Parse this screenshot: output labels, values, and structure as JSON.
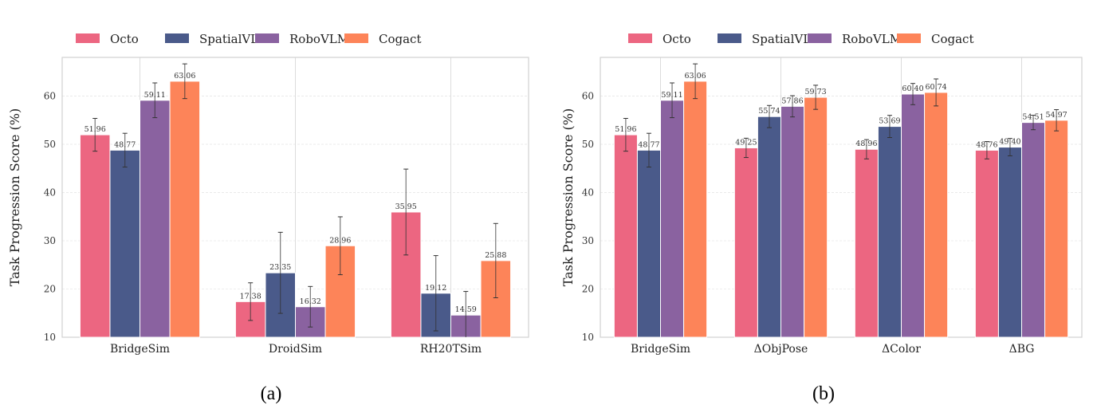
{
  "colors": {
    "Octo": "#ec6681",
    "SpatialVLA": "#4a5a8a",
    "RoboVLM": "#8a62a0",
    "Cogact": "#fd8459"
  },
  "chart_data": [
    {
      "type": "bar",
      "caption": "(a)",
      "ylabel": "Task Progression Score (%)",
      "xlabel": "",
      "ylim": [
        10,
        68
      ],
      "yticks": [
        10,
        20,
        30,
        40,
        50,
        60
      ],
      "grid": true,
      "legend": "top-center",
      "categories": [
        "BridgeSim",
        "DroidSim",
        "RH20TSim"
      ],
      "series": [
        {
          "name": "Octo",
          "values": [
            51.96,
            17.38,
            35.95
          ],
          "errors": [
            3.4,
            3.9,
            8.9
          ]
        },
        {
          "name": "SpatialVLA",
          "values": [
            48.77,
            23.35,
            19.12
          ],
          "errors": [
            3.5,
            8.4,
            7.8
          ]
        },
        {
          "name": "RoboVLM",
          "values": [
            59.11,
            16.32,
            14.59
          ],
          "errors": [
            3.6,
            4.2,
            4.9
          ]
        },
        {
          "name": "Cogact",
          "values": [
            63.06,
            28.96,
            25.88
          ],
          "errors": [
            3.6,
            6.0,
            7.7
          ]
        }
      ]
    },
    {
      "type": "bar",
      "caption": "(b)",
      "ylabel": "Task Progression Score (%)",
      "xlabel": "",
      "ylim": [
        10,
        68
      ],
      "yticks": [
        10,
        20,
        30,
        40,
        50,
        60
      ],
      "grid": true,
      "legend": "top-center",
      "categories": [
        "BridgeSim",
        "ΔObjPose",
        "ΔColor",
        "ΔBG"
      ],
      "series": [
        {
          "name": "Octo",
          "values": [
            51.96,
            49.25,
            48.96,
            48.76
          ],
          "errors": [
            3.4,
            2.0,
            2.0,
            1.8
          ]
        },
        {
          "name": "SpatialVLA",
          "values": [
            48.77,
            55.74,
            53.69,
            49.4
          ],
          "errors": [
            3.5,
            2.3,
            2.3,
            1.8
          ]
        },
        {
          "name": "RoboVLM",
          "values": [
            59.11,
            57.86,
            60.4,
            54.51
          ],
          "errors": [
            3.6,
            2.2,
            2.2,
            1.5
          ]
        },
        {
          "name": "Cogact",
          "values": [
            63.06,
            59.73,
            60.74,
            54.97
          ],
          "errors": [
            3.6,
            2.5,
            2.8,
            2.2
          ]
        }
      ]
    }
  ]
}
